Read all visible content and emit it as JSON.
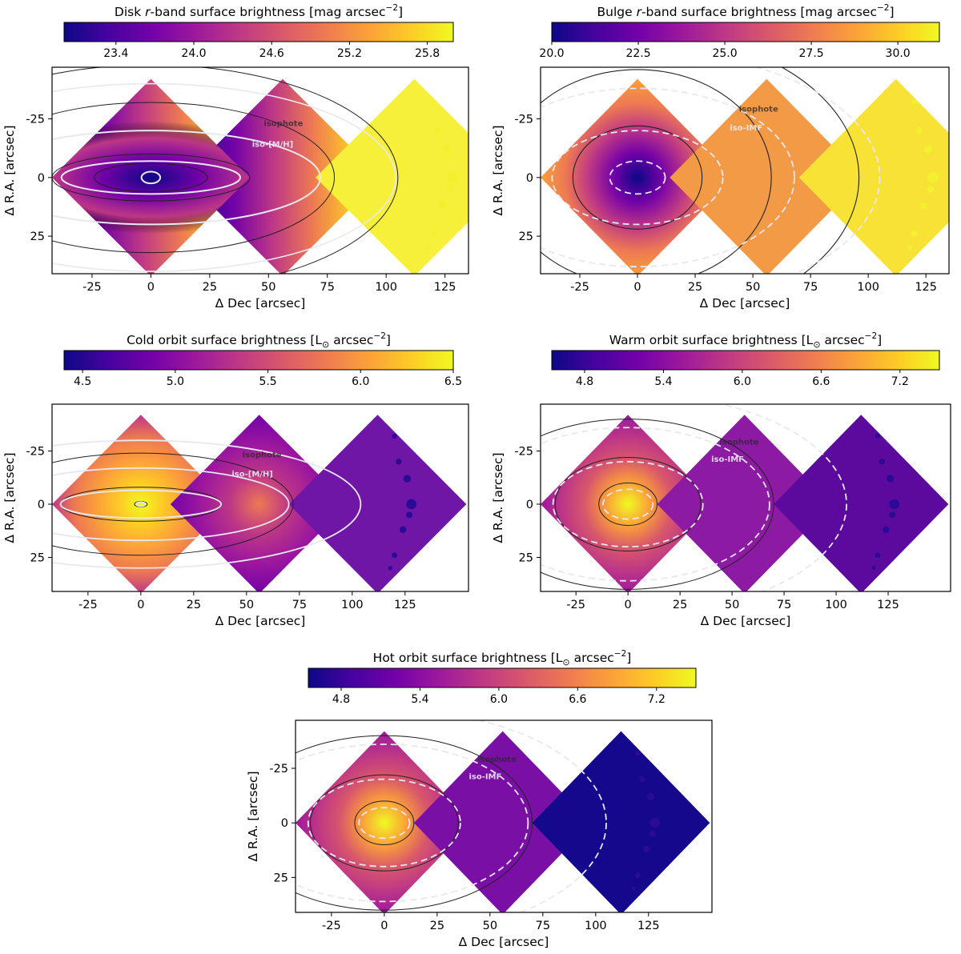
{
  "chart_data": [
    {
      "id": "disk",
      "type": "heatmap",
      "title": "Disk r-band surface brightness [mag arcsec⁻²]",
      "title_parts": [
        "Disk ",
        "r",
        "-band surface brightness [mag arcsec",
        "−2",
        "]"
      ],
      "colorbar": {
        "range": [
          23.0,
          26.0
        ],
        "ticks": [
          "23.4",
          "24.0",
          "24.6",
          "25.2",
          "25.8"
        ],
        "tick_values": [
          23.4,
          24.0,
          24.6,
          25.2,
          25.8
        ],
        "colormap": "plasma"
      },
      "xlabel": "Δ Dec [arcsec]",
      "ylabel": "Δ R.A. [arcsec]",
      "xlim": [
        -42,
        135
      ],
      "ylim": [
        -47,
        41
      ],
      "xticks": [
        "-25",
        "0",
        "25",
        "50",
        "75",
        "100",
        "125"
      ],
      "xtick_values": [
        -25,
        0,
        25,
        50,
        75,
        100,
        125
      ],
      "yticks": [
        "-25",
        "0",
        "25"
      ],
      "ytick_values": [
        -25,
        0,
        25
      ],
      "contour_labels": [
        "isophote",
        "iso-[M/H]"
      ],
      "style": "disk"
    },
    {
      "id": "bulge",
      "type": "heatmap",
      "title": "Bulge r-band surface brightness [mag arcsec⁻²]",
      "title_parts": [
        "Bulge ",
        "r",
        "-band surface brightness [mag arcsec",
        "−2",
        "]"
      ],
      "colorbar": {
        "range": [
          20.0,
          31.2
        ],
        "ticks": [
          "20.0",
          "22.5",
          "25.0",
          "27.5",
          "30.0"
        ],
        "tick_values": [
          20.0,
          22.5,
          25.0,
          27.5,
          30.0
        ],
        "colormap": "plasma"
      },
      "xlabel": "Δ Dec [arcsec]",
      "ylabel": "Δ R.A. [arcsec]",
      "xlim": [
        -42,
        135
      ],
      "ylim": [
        -47,
        41
      ],
      "xticks": [
        "-25",
        "0",
        "25",
        "50",
        "75",
        "100",
        "125"
      ],
      "xtick_values": [
        -25,
        0,
        25,
        50,
        75,
        100,
        125
      ],
      "yticks": [
        "-25",
        "0",
        "25"
      ],
      "ytick_values": [
        -25,
        0,
        25
      ],
      "contour_labels": [
        "isophote",
        "iso-IMF"
      ],
      "style": "bulge"
    },
    {
      "id": "cold",
      "type": "heatmap",
      "title": "Cold orbit surface brightness [L⊙ arcsec⁻²]",
      "title_parts": [
        "Cold orbit surface brightness [L",
        "⊙",
        " arcsec",
        "−2",
        "]"
      ],
      "colorbar": {
        "range": [
          4.4,
          6.5
        ],
        "ticks": [
          "4.5",
          "5.0",
          "5.5",
          "6.0",
          "6.5"
        ],
        "tick_values": [
          4.5,
          5.0,
          5.5,
          6.0,
          6.5
        ],
        "colormap": "plasma"
      },
      "xlabel": "Δ Dec [arcsec]",
      "ylabel": "Δ R.A. [arcsec]",
      "xlim": [
        -42,
        155
      ],
      "ylim": [
        -47,
        41
      ],
      "xticks": [
        "-25",
        "0",
        "25",
        "50",
        "75",
        "100",
        "125"
      ],
      "xtick_values": [
        -25,
        0,
        25,
        50,
        75,
        100,
        125
      ],
      "yticks": [
        "-25",
        "0",
        "25"
      ],
      "ytick_values": [
        -25,
        0,
        25
      ],
      "contour_labels": [
        "isophote",
        "iso-[M/H]"
      ],
      "style": "cold"
    },
    {
      "id": "warm",
      "type": "heatmap",
      "title": "Warm orbit surface brightness [L⊙ arcsec⁻²]",
      "title_parts": [
        "Warm orbit surface brightness [L",
        "⊙",
        " arcsec",
        "−2",
        "]"
      ],
      "colorbar": {
        "range": [
          4.55,
          7.5
        ],
        "ticks": [
          "4.8",
          "5.4",
          "6.0",
          "6.6",
          "7.2"
        ],
        "tick_values": [
          4.8,
          5.4,
          6.0,
          6.6,
          7.2
        ],
        "colormap": "plasma"
      },
      "xlabel": "Δ Dec [arcsec]",
      "ylabel": "Δ R.A. [arcsec]",
      "xlim": [
        -42,
        155
      ],
      "ylim": [
        -47,
        41
      ],
      "xticks": [
        "-25",
        "0",
        "25",
        "50",
        "75",
        "100",
        "125"
      ],
      "xtick_values": [
        -25,
        0,
        25,
        50,
        75,
        100,
        125
      ],
      "yticks": [
        "-25",
        "0",
        "25"
      ],
      "ytick_values": [
        -25,
        0,
        25
      ],
      "contour_labels": [
        "isophote",
        "iso-IMF"
      ],
      "style": "warm"
    },
    {
      "id": "hot",
      "type": "heatmap",
      "title": "Hot orbit surface brightness [L⊙ arcsec⁻²]",
      "title_parts": [
        "Hot orbit surface brightness [L",
        "⊙",
        " arcsec",
        "−2",
        "]"
      ],
      "colorbar": {
        "range": [
          4.55,
          7.5
        ],
        "ticks": [
          "4.8",
          "5.4",
          "6.0",
          "6.6",
          "7.2"
        ],
        "tick_values": [
          4.8,
          5.4,
          6.0,
          6.6,
          7.2
        ],
        "colormap": "plasma"
      },
      "xlabel": "Δ Dec [arcsec]",
      "ylabel": "Δ R.A. [arcsec]",
      "xlim": [
        -42,
        155
      ],
      "ylim": [
        -47,
        41
      ],
      "xticks": [
        "-25",
        "0",
        "25",
        "50",
        "75",
        "100",
        "125"
      ],
      "xtick_values": [
        -25,
        0,
        25,
        50,
        75,
        100,
        125
      ],
      "yticks": [
        "-25",
        "0",
        "25"
      ],
      "ytick_values": [
        -25,
        0,
        25
      ],
      "contour_labels": [
        "isophote",
        "iso-IMF"
      ],
      "style": "hot"
    }
  ],
  "colors": {
    "plasma_stops": [
      "#0d0887",
      "#46039f",
      "#7201a8",
      "#9c179e",
      "#bd3786",
      "#d8576b",
      "#ed7953",
      "#fb9f3a",
      "#fdca26",
      "#f0f921"
    ],
    "isophote": "#222222",
    "iso_secondary": "#e8e8f0"
  }
}
